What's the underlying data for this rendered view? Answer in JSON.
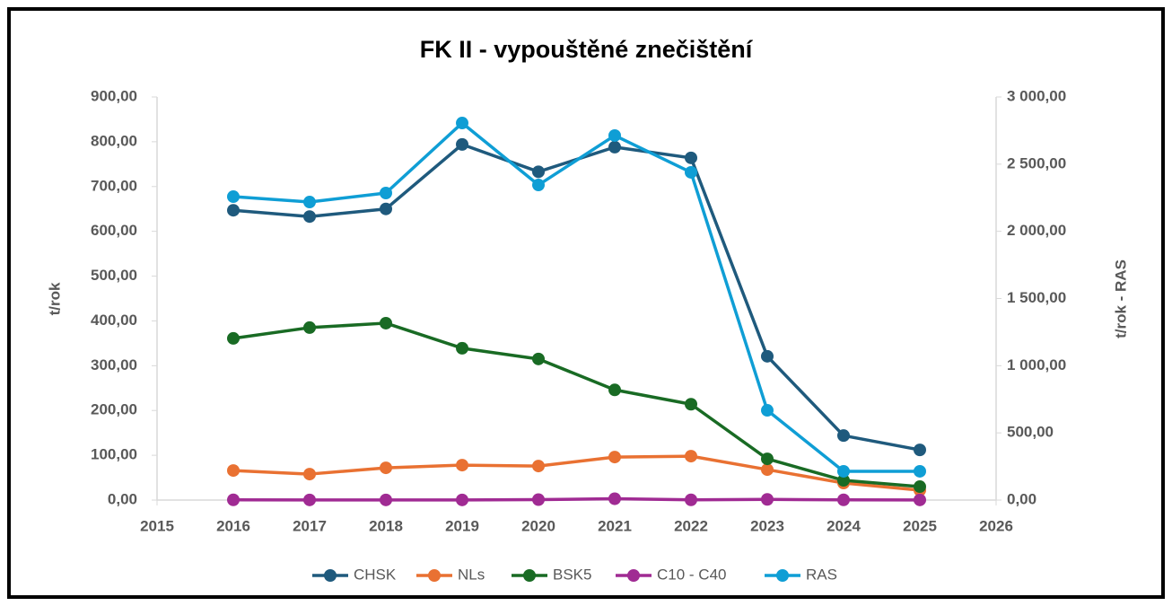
{
  "chart_data": {
    "type": "line",
    "title": "FK II - vypouštěné znečištění",
    "ylabel": "t/rok",
    "y2label": "t/rok - RAS",
    "x": [
      2016,
      2017,
      2018,
      2019,
      2020,
      2021,
      2022,
      2023,
      2024,
      2025
    ],
    "xlim": [
      2015,
      2026
    ],
    "xticks": [
      2015,
      2016,
      2017,
      2018,
      2019,
      2020,
      2021,
      2022,
      2023,
      2024,
      2025,
      2026
    ],
    "ylim": [
      0,
      900
    ],
    "yticks": [
      {
        "value": 0,
        "label": "0,00"
      },
      {
        "value": 100,
        "label": "100,00"
      },
      {
        "value": 200,
        "label": "200,00"
      },
      {
        "value": 300,
        "label": "300,00"
      },
      {
        "value": 400,
        "label": "400,00"
      },
      {
        "value": 500,
        "label": "500,00"
      },
      {
        "value": 600,
        "label": "600,00"
      },
      {
        "value": 700,
        "label": "700,00"
      },
      {
        "value": 800,
        "label": "800,00"
      },
      {
        "value": 900,
        "label": "900,00"
      }
    ],
    "y2lim": [
      0,
      3000
    ],
    "y2ticks": [
      {
        "value": 0,
        "label": "0,00"
      },
      {
        "value": 500,
        "label": "500,00"
      },
      {
        "value": 1000,
        "label": "1 000,00"
      },
      {
        "value": 1500,
        "label": "1 500,00"
      },
      {
        "value": 2000,
        "label": "2 000,00"
      },
      {
        "value": 2500,
        "label": "2 500,00"
      },
      {
        "value": 3000,
        "label": "3 000,00"
      }
    ],
    "grid": false,
    "legend": "bottom",
    "series": [
      {
        "name": "CHSK",
        "color": "#1f5a7d",
        "values": [
          647,
          633,
          650,
          794,
          733,
          788,
          764,
          321,
          144,
          112
        ]
      },
      {
        "name": "NLs",
        "color": "#e97132",
        "values": [
          66,
          58,
          72,
          78,
          76,
          96,
          98,
          68,
          38,
          22
        ]
      },
      {
        "name": "BSK5",
        "color": "#196b24",
        "values": [
          361,
          385,
          395,
          339,
          315,
          246,
          214,
          92,
          44,
          30
        ]
      },
      {
        "name": "C10 - C40",
        "color": "#a02b93",
        "values": [
          0.5,
          0.3,
          0.3,
          0.3,
          1,
          3,
          0.5,
          1.5,
          0.5,
          0.3
        ]
      },
      {
        "name": "RAS",
        "color": "#0f9ed5",
        "axis": "y2",
        "values": [
          2258,
          2218,
          2285,
          2806,
          2345,
          2713,
          2439,
          668,
          214,
          214
        ]
      }
    ]
  }
}
